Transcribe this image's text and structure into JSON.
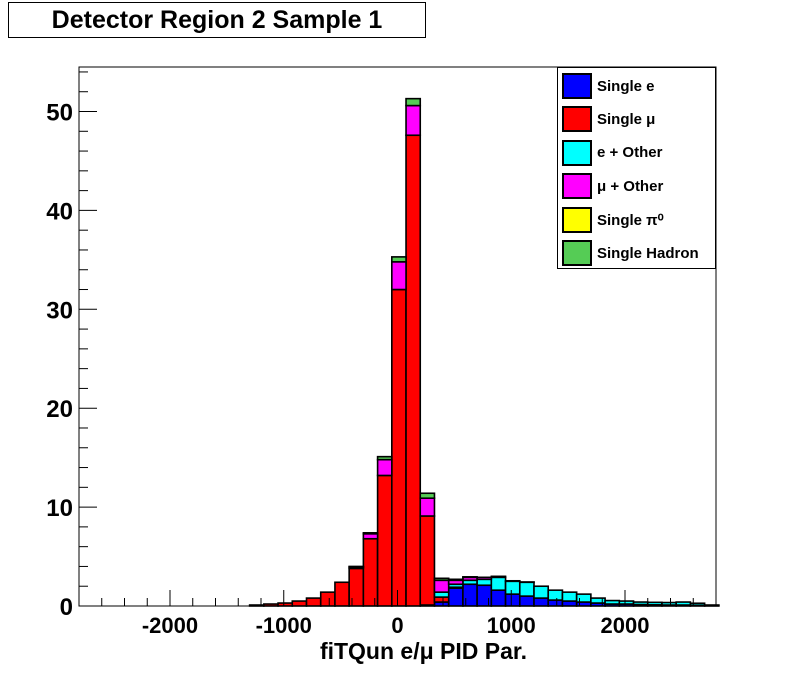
{
  "chart_data": {
    "type": "bar",
    "title": "Detector Region 2 Sample 1",
    "xlabel": "fiTQun e/μ PID Par.",
    "ylabel": "",
    "xlim": [
      -2800,
      2800
    ],
    "ylim": [
      0,
      54.5
    ],
    "x_ticks": [
      "-2000",
      "-1000",
      "0",
      "1000",
      "2000"
    ],
    "y_ticks": [
      "0",
      "10",
      "20",
      "30",
      "40",
      "50"
    ],
    "stacked": true,
    "bin_width": 125,
    "bin_edges_start": -2800,
    "legend_position": "top-right",
    "series": [
      {
        "name": "Single e",
        "color": "#0000ff",
        "values": [
          0,
          0,
          0,
          0,
          0,
          0,
          0,
          0,
          0,
          0,
          0,
          0,
          0,
          0,
          0,
          0,
          0,
          0,
          0,
          0,
          0,
          0,
          0,
          0,
          0.1,
          0.4,
          1.8,
          2.2,
          2.1,
          1.6,
          1.2,
          1.0,
          0.8,
          0.6,
          0.5,
          0.4,
          0.3,
          0.2,
          0.2,
          0.15,
          0.12,
          0.1,
          0.1,
          0.08,
          0.05
        ]
      },
      {
        "name": "Single μ",
        "color": "#ff0000",
        "values": [
          0,
          0,
          0,
          0,
          0,
          0,
          0,
          0,
          0,
          0,
          0,
          0,
          0.1,
          0.2,
          0.3,
          0.5,
          0.8,
          1.4,
          2.4,
          3.8,
          6.8,
          13.2,
          32.0,
          47.6,
          9.0,
          0.5,
          0.1,
          0,
          0,
          0,
          0,
          0,
          0,
          0,
          0,
          0,
          0,
          0,
          0,
          0,
          0,
          0,
          0,
          0,
          0
        ]
      },
      {
        "name": "e + Other",
        "color": "#00ffff",
        "values": [
          0,
          0,
          0,
          0,
          0,
          0,
          0,
          0,
          0,
          0,
          0,
          0,
          0,
          0,
          0,
          0,
          0,
          0,
          0,
          0,
          0,
          0,
          0,
          0,
          0,
          0.5,
          0.3,
          0.4,
          0.6,
          1.3,
          1.3,
          1.4,
          1.2,
          1.0,
          0.9,
          0.8,
          0.5,
          0.35,
          0.3,
          0.25,
          0.25,
          0.25,
          0.3,
          0.2,
          0.05
        ]
      },
      {
        "name": "μ + Other",
        "color": "#ff00ff",
        "values": [
          0,
          0,
          0,
          0,
          0,
          0,
          0,
          0,
          0,
          0,
          0,
          0,
          0,
          0,
          0,
          0,
          0,
          0,
          0,
          0.15,
          0.5,
          1.6,
          2.8,
          3.0,
          1.8,
          1.2,
          0.4,
          0.3,
          0.2,
          0.1,
          0.05,
          0.03,
          0,
          0,
          0,
          0,
          0,
          0,
          0,
          0,
          0,
          0,
          0,
          0,
          0
        ]
      },
      {
        "name": "Single π⁰",
        "color": "#ffff00",
        "values": [
          0,
          0,
          0,
          0,
          0,
          0,
          0,
          0,
          0,
          0,
          0,
          0,
          0,
          0,
          0,
          0,
          0,
          0,
          0,
          0,
          0,
          0,
          0,
          0,
          0,
          0,
          0,
          0,
          0,
          0,
          0,
          0,
          0,
          0,
          0,
          0,
          0,
          0,
          0,
          0,
          0,
          0,
          0,
          0,
          0
        ]
      },
      {
        "name": "Single Hadron",
        "color": "#55cc55",
        "values": [
          0,
          0,
          0,
          0,
          0,
          0,
          0,
          0,
          0,
          0,
          0,
          0,
          0,
          0,
          0,
          0,
          0,
          0,
          0,
          0.05,
          0.1,
          0.3,
          0.5,
          0.7,
          0.5,
          0.2,
          0.1,
          0.05,
          0,
          0,
          0,
          0,
          0,
          0,
          0,
          0,
          0,
          0,
          0,
          0,
          0,
          0,
          0,
          0,
          0
        ]
      }
    ]
  },
  "legend": {
    "items": [
      {
        "label": "Single e",
        "color": "#0000ff"
      },
      {
        "label": "Single μ",
        "color": "#ff0000"
      },
      {
        "label": "e + Other",
        "color": "#00ffff"
      },
      {
        "label": "μ + Other",
        "color": "#ff00ff"
      },
      {
        "label": "Single π⁰",
        "color": "#ffff00"
      },
      {
        "label": "Single Hadron",
        "color": "#55cc55"
      }
    ]
  }
}
